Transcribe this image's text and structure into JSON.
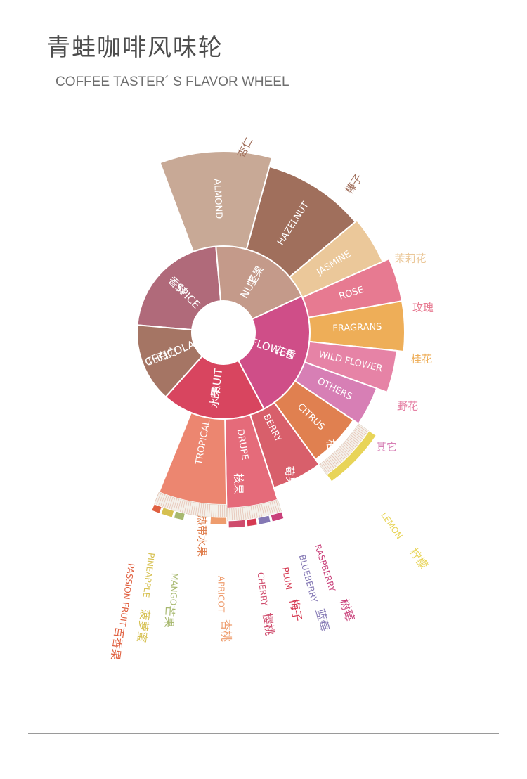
{
  "header": {
    "title": "青蛙咖啡风味轮",
    "subtitle": "COFFEE TASTER´ S FLAVOR WHEEL"
  },
  "wheel": {
    "categories": [
      {
        "cn": "香料",
        "en": "SPICE",
        "color": "#b06a7a"
      },
      {
        "cn": "坚果",
        "en": "NUT",
        "color": "#c49a8a"
      },
      {
        "cn": "花香",
        "en": "FLOWER",
        "color": "#cf4e88"
      },
      {
        "cn": "水果",
        "en": "FRUIT",
        "color": "#d8455f"
      },
      {
        "cn": "巧克力",
        "en": "CHOCOLATE",
        "color": "#a57564"
      }
    ],
    "subcategories": [
      {
        "en": "ALMOND",
        "cn": "杏仁",
        "color": "#c8a996"
      },
      {
        "en": "HAZELNUT",
        "cn": "榛子",
        "color": "#a06f5c"
      },
      {
        "en": "JASMINE",
        "cn": "茉莉花",
        "color": "#ebc89a"
      },
      {
        "en": "ROSE",
        "cn": "玫瑰",
        "color": "#e77a91"
      },
      {
        "en": "FRAGRANS",
        "cn": "桂花",
        "color": "#eeae58"
      },
      {
        "en": "WILD FLOWER",
        "cn": "野花",
        "color": "#e683a6"
      },
      {
        "en": "OTHERS",
        "cn": "其它",
        "color": "#d77fb5"
      },
      {
        "en": "CITRUS",
        "cn": "柑橘",
        "color": "#e08050"
      },
      {
        "en": "BERRY",
        "cn": "莓果",
        "color": "#d85f6b"
      },
      {
        "en": "DRUPE",
        "cn": "核果",
        "color": "#e56b7a"
      },
      {
        "en": "TROPICAL",
        "cn": "热带水果",
        "color": "#ec8670"
      }
    ],
    "fruits": [
      {
        "en": "LEMON",
        "cn": "柠檬",
        "color": "#e8d458"
      },
      {
        "en": "RASPBERRY",
        "cn": "树莓",
        "color": "#c9407a"
      },
      {
        "en": "BLUEBERRY",
        "cn": "蓝莓",
        "color": "#8478b4"
      },
      {
        "en": "PLUM",
        "cn": "梅子",
        "color": "#d63a52"
      },
      {
        "en": "CHERRY",
        "cn": "樱桃",
        "color": "#cf4b6c"
      },
      {
        "en": "APRICOT",
        "cn": "杏桃",
        "color": "#ee9c6d"
      },
      {
        "en": "MANGO",
        "cn": "芒果",
        "color": "#a7b86e"
      },
      {
        "en": "PINEAPPLE",
        "cn": "菠萝蜜",
        "color": "#d6c050"
      },
      {
        "en": "PASSION FRUIT",
        "cn": "百香果",
        "color": "#e06040"
      }
    ]
  }
}
